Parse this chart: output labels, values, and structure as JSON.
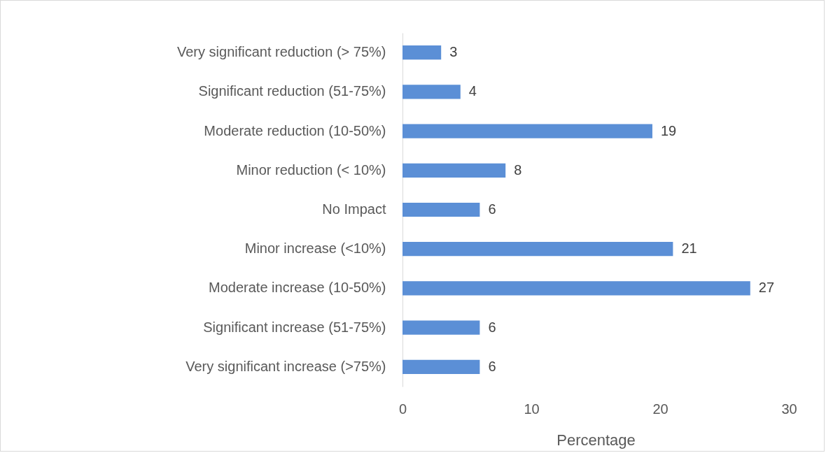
{
  "chart_data": {
    "type": "bar",
    "orientation": "horizontal",
    "xlabel": "Percentage",
    "categories": [
      "Very significant reduction (> 75%)",
      "Significant reduction (51-75%)",
      "Moderate reduction (10-50%)",
      "Minor reduction (< 10%)",
      "No Impact",
      "Minor increase (<10%)",
      "Moderate increase (10-50%)",
      "Significant increase (51-75%)",
      "Very significant increase (>75%)"
    ],
    "values": [
      3,
      4.5,
      19.4,
      8,
      6,
      21,
      27,
      6,
      6
    ],
    "value_labels": [
      "3",
      "4",
      "19",
      "8",
      "6",
      "21",
      "27",
      "6",
      "6"
    ],
    "color": "#5b8fd6",
    "xlim": [
      0,
      30
    ],
    "xticks": [
      0,
      10,
      20,
      30
    ],
    "grid": false
  }
}
